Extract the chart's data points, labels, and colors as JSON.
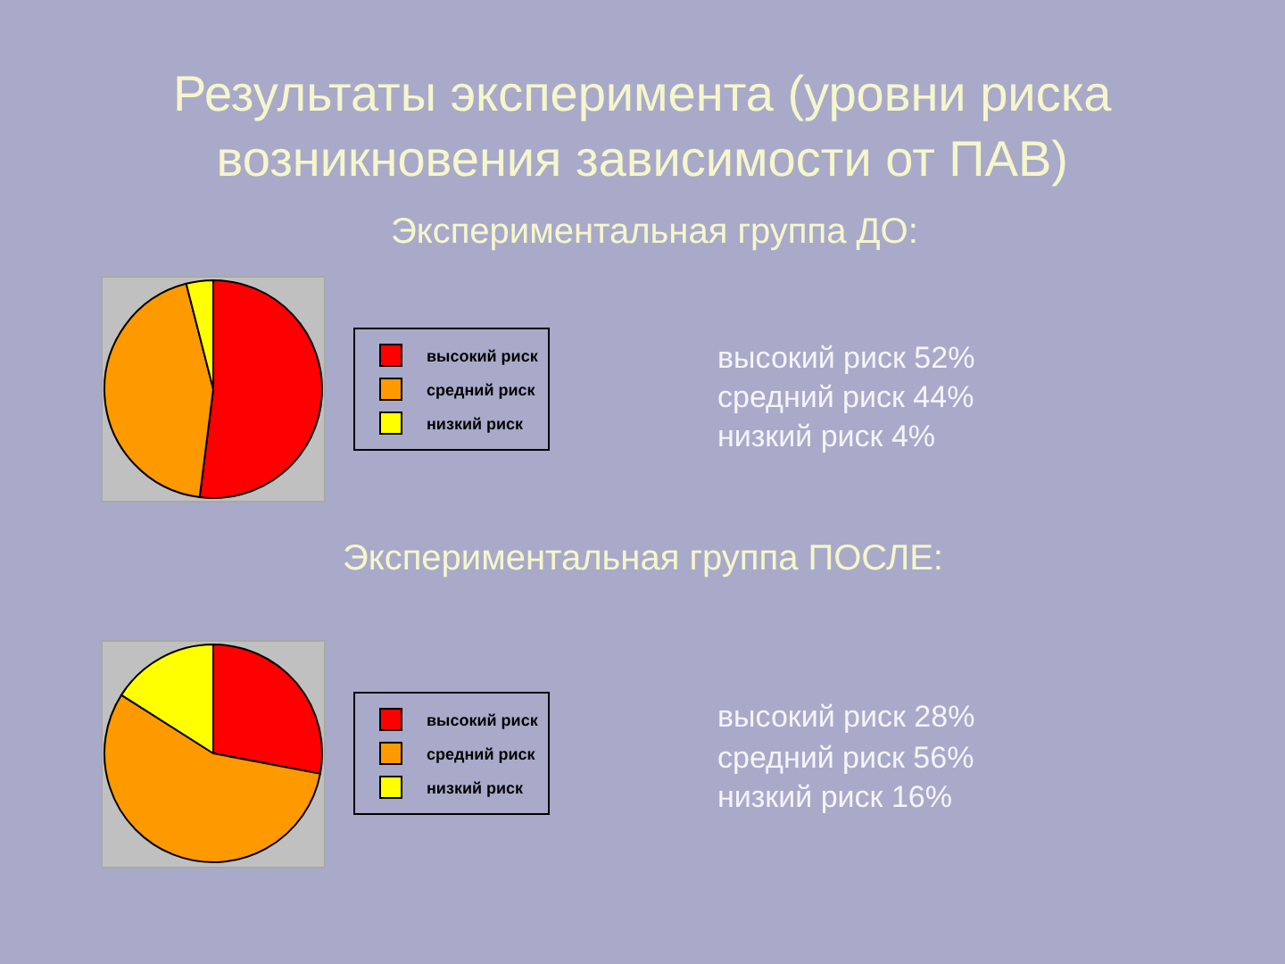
{
  "chart_data": [
    {
      "type": "pie",
      "title": "Результаты эксперимента (уровни риска возникновения зависимости от ПАВ)",
      "subtitle": "Экспериментальная группа ДО:",
      "categories": [
        "высокий риск",
        "средний риск",
        "низкий риск"
      ],
      "values": [
        52,
        44,
        4
      ],
      "colors": [
        "#ff0000",
        "#ff9900",
        "#ffff00"
      ],
      "legend": "right",
      "annotations": [
        "высокий риск 52%",
        "средний риск 44%",
        "низкий риск 4%"
      ]
    },
    {
      "type": "pie",
      "title": "Экспериментальная группа ПОСЛЕ:",
      "categories": [
        "высокий риск",
        "средний риск",
        "низкий риск"
      ],
      "values": [
        28,
        56,
        16
      ],
      "colors": [
        "#ff0000",
        "#ff9900",
        "#ffff00"
      ],
      "legend": "right",
      "annotations": [
        "высокий риск 28%",
        "средний риск 56%",
        "низкий риск 16%"
      ]
    }
  ]
}
